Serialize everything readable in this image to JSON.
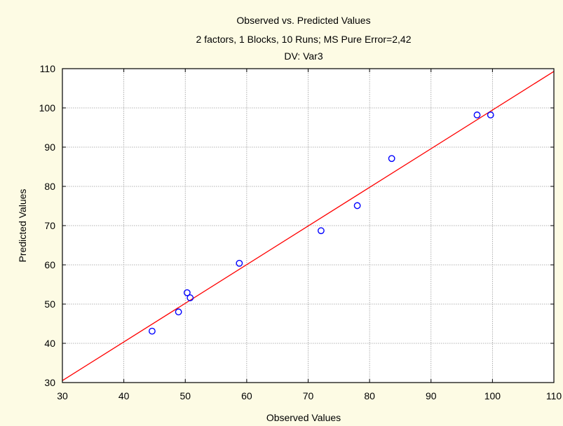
{
  "chart_data": {
    "type": "scatter",
    "title": "Observed vs. Predicted Values",
    "subtitle": "2 factors, 1 Blocks, 10 Runs; MS Pure Error=2,42",
    "subtitle2": "DV: Var3",
    "xlabel": "Observed Values",
    "ylabel": "Predicted Values",
    "xlim": [
      30,
      110
    ],
    "ylim": [
      30,
      110
    ],
    "xticks": [
      "30",
      "40",
      "50",
      "60",
      "70",
      "80",
      "90",
      "100",
      "110"
    ],
    "yticks": [
      "30",
      "40",
      "50",
      "60",
      "70",
      "80",
      "90",
      "100",
      "110"
    ],
    "grid": true,
    "points": [
      {
        "x": 44.6,
        "y": 43.1
      },
      {
        "x": 48.9,
        "y": 48.0
      },
      {
        "x": 50.3,
        "y": 52.9
      },
      {
        "x": 50.8,
        "y": 51.6
      },
      {
        "x": 58.8,
        "y": 60.4
      },
      {
        "x": 72.1,
        "y": 68.7
      },
      {
        "x": 78.0,
        "y": 75.1
      },
      {
        "x": 83.6,
        "y": 87.1
      },
      {
        "x": 97.5,
        "y": 98.2
      },
      {
        "x": 99.7,
        "y": 98.2
      }
    ],
    "fit_line": {
      "x": [
        30,
        110
      ],
      "y": [
        30.5,
        109.3
      ]
    },
    "colors": {
      "background": "#fdfbe4",
      "plot_background": "#ffffff",
      "points": "#0000ff",
      "line": "#ff0000",
      "grid": "#9a9a9a",
      "axis": "#000000"
    }
  }
}
